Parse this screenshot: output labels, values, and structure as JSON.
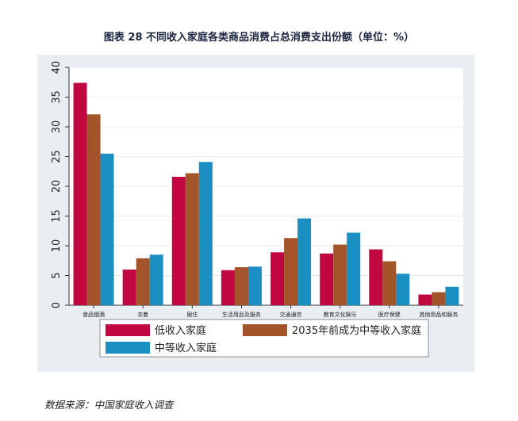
{
  "page_title": "图表 28 不同收入家庭各类商品消费占总消费支出份额（单位：%）",
  "source": "数据来源：中国家庭收入调查",
  "colors": {
    "series": [
      "#c0073f",
      "#a4542b",
      "#1a8fc2"
    ],
    "panel_background": "#e9eef3",
    "plot_background": "#ffffff",
    "gridline": "#e4eaf0"
  },
  "chart_data": {
    "type": "bar",
    "title": "图表 28 不同收入家庭各类商品消费占总消费支出份额（单位：%）",
    "xlabel": "",
    "ylabel": "",
    "ylim": [
      0,
      40
    ],
    "yticks": [
      0,
      5,
      10,
      15,
      20,
      25,
      30,
      35,
      40
    ],
    "grid": true,
    "legend_position": "bottom",
    "categories": [
      "食品烟酒",
      "衣着",
      "居住",
      "生活用品及服务",
      "交通通信",
      "教育文化娱乐",
      "医疗保健",
      "其他用品和服务"
    ],
    "series": [
      {
        "name": "低收入家庭",
        "values": [
          37.4,
          6.0,
          21.6,
          5.9,
          8.9,
          8.7,
          9.4,
          1.8
        ]
      },
      {
        "name": "2035年前成为中等收入家庭",
        "values": [
          32.1,
          7.9,
          22.2,
          6.4,
          11.3,
          10.2,
          7.4,
          2.2
        ]
      },
      {
        "name": "中等收入家庭",
        "values": [
          25.5,
          8.5,
          24.1,
          6.5,
          14.6,
          12.2,
          5.3,
          3.1
        ]
      }
    ]
  }
}
